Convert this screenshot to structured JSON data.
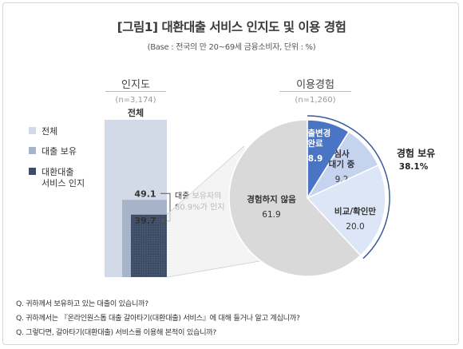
{
  "title": "[그림1] 대환대출 서비스 인지도 및 이용 경험",
  "subtitle": "(Base : 전국의 만 20~69세 금융소비자, 단위 : %)",
  "left_section": {
    "heading": "인지도",
    "base": "(n=3,174)"
  },
  "right_section": {
    "heading": "이용경험",
    "base": "(n=1,260)"
  },
  "legend": [
    {
      "label": "전체",
      "color": "#d2d9e7"
    },
    {
      "label": "대출 보유",
      "color": "#a6b3c9"
    },
    {
      "label_lines": [
        "대환대출",
        "서비스 인지"
      ],
      "color": "#3e4d66"
    }
  ],
  "chart_data": [
    {
      "type": "bar",
      "category_label": "전체",
      "series": [
        {
          "name": "전체",
          "value": null,
          "color": "#d2d9e7"
        },
        {
          "name": "대출 보유",
          "value": 49.1,
          "color": "#a6b3c9"
        },
        {
          "name": "대환대출 서비스 인지",
          "value": 39.7,
          "color": "#3e4d66"
        }
      ],
      "annotation_lines": [
        "대출 보유자의",
        "80.9%가 인지"
      ]
    },
    {
      "type": "pie",
      "slices": [
        {
          "label_lines": [
            "대출변경",
            "완료"
          ],
          "value": 8.9,
          "value_label": "8.9",
          "color": "#4a74c4",
          "text_color": "#ffffff"
        },
        {
          "label_lines": [
            "심사",
            "대기 중"
          ],
          "value": 9.2,
          "value_label": "9.2",
          "color": "#c5d3ee",
          "text_color": "#333333"
        },
        {
          "label_lines": [
            "비교/확인만"
          ],
          "value": 20.0,
          "value_label": "20.0",
          "color": "#dde6f6",
          "text_color": "#333333"
        },
        {
          "label_lines": [
            "경험하지 않음"
          ],
          "value": 61.9,
          "value_label": "61.9",
          "color": "#d9d9d9",
          "text_color": "#333333"
        }
      ],
      "group_annotation": {
        "label": "경험 보유",
        "value": "38.1%"
      }
    }
  ],
  "questions": [
    "Q. 귀하께서 보유하고 있는 대출이 있습니까?",
    "Q. 귀하께서는 『온라인원스톱 대출 갈아타기(대환대출) 서비스』에 대해 들거나 알고 계십니까?",
    "Q. 그렇다면, 갈아타기(대환대출) 서비스를 이용해 본적이 있습니까?"
  ]
}
